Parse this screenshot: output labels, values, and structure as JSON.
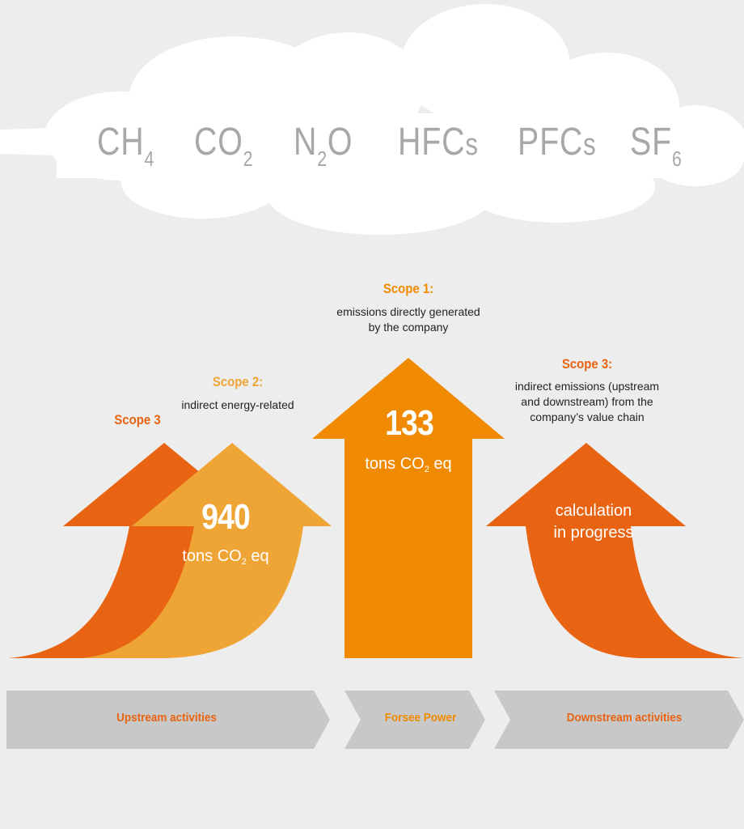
{
  "colors": {
    "background": "#ededed",
    "cloud": "#ffffff",
    "gas_text": "#a8a8a8",
    "scope3_orange": "#e86412",
    "scope2_orange": "#efa535",
    "scope1_orange": "#f08a00",
    "chevron_gray": "#c8c8c8",
    "text_dark": "#222222"
  },
  "gases": {
    "ch4": {
      "base": "CH",
      "sub": "4"
    },
    "co2": {
      "base": "CO",
      "sub": "2"
    },
    "n2o": {
      "pre": "N",
      "sub": "2",
      "post": "O"
    },
    "hfcs": {
      "base": "HFC",
      "small": "s"
    },
    "pfcs": {
      "base": "PFC",
      "small": "s"
    },
    "sf6": {
      "base": "SF",
      "sub": "6"
    }
  },
  "scope1": {
    "title": "Scope 1:",
    "desc_line1": "emissions directly generated",
    "desc_line2": "by the company",
    "value": "133",
    "unit_pre": "tons CO",
    "unit_sub": "2",
    "unit_post": " eq"
  },
  "scope2": {
    "title": "Scope 2:",
    "desc": "indirect energy-related",
    "value": "940",
    "unit_pre": "tons CO",
    "unit_sub": "2",
    "unit_post": " eq"
  },
  "scope3_left": {
    "title": "Scope 3"
  },
  "scope3_right": {
    "title": "Scope 3:",
    "desc_line1": "indirect emissions (upstream",
    "desc_line2": "and downstream) from the",
    "desc_line3": "company’s value chain",
    "status_line1": "calculation",
    "status_line2": "in progress"
  },
  "activities": {
    "upstream": "Upstream activities",
    "company": "Forsee Power",
    "downstream": "Downstream activities"
  }
}
